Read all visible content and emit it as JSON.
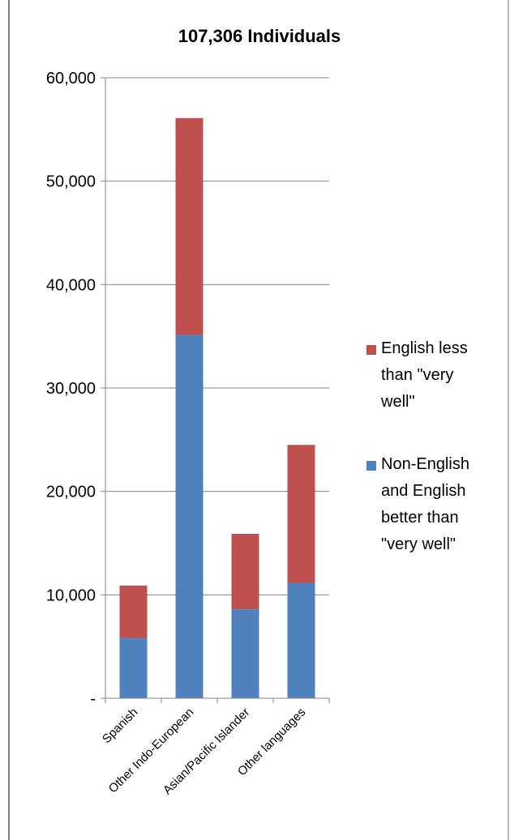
{
  "chart_data": {
    "type": "bar",
    "stacked": true,
    "title": "107,306 Individuals",
    "xlabel": "",
    "ylabel": "",
    "ylim": [
      0,
      60000
    ],
    "yticks": [
      {
        "value": 0,
        "label": "-"
      },
      {
        "value": 10000,
        "label": "10,000"
      },
      {
        "value": 20000,
        "label": "20,000"
      },
      {
        "value": 30000,
        "label": "30,000"
      },
      {
        "value": 40000,
        "label": "40,000"
      },
      {
        "value": 50000,
        "label": "50,000"
      },
      {
        "value": 60000,
        "label": "60,000"
      }
    ],
    "grid": true,
    "legend_position": "right",
    "categories": [
      "Spanish",
      "Other Indo-European",
      "Asian/Pacific Islander",
      "Other languages"
    ],
    "series": [
      {
        "name": "Non-English and English better than \"very well\"",
        "legend_lines": [
          "Non-English",
          "and English",
          "better than",
          "\"very well\""
        ],
        "color": "#4f81bd",
        "values": [
          5800,
          35100,
          8600,
          11200
        ]
      },
      {
        "name": "English less than \"very well\"",
        "legend_lines": [
          "English less",
          "than \"very",
          "well\""
        ],
        "color": "#c0504d",
        "values": [
          5100,
          21000,
          7300,
          13300
        ]
      }
    ]
  }
}
